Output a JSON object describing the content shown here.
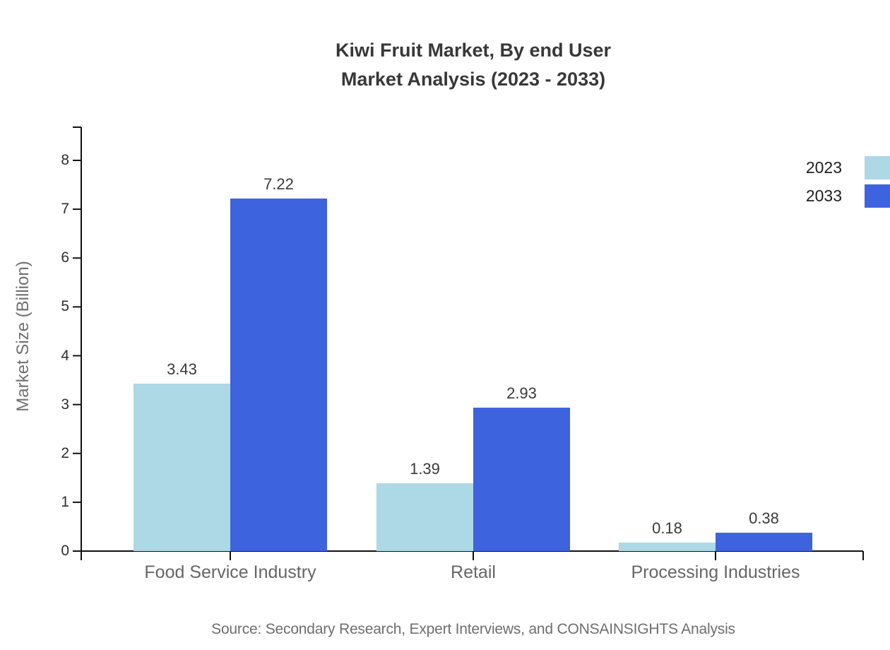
{
  "title": {
    "line1": "Kiwi Fruit Market, By end User",
    "line2": "Market Analysis (2023 - 2033)"
  },
  "y_axis_title": "Market Size (Billion)",
  "source_note": "Source: Secondary Research, Expert Interviews, and CONSAINSIGHTS Analysis",
  "colors": {
    "series_2023": "#ADD8E6",
    "series_2033": "#3D63DE",
    "axis": "#111111",
    "title_text": "#383838",
    "muted_text": "#666666"
  },
  "chart_data": {
    "type": "bar",
    "title": "Kiwi Fruit Market, By end User Market Analysis (2023 - 2033)",
    "categories": [
      "Food Service Industry",
      "Retail",
      "Processing Industries"
    ],
    "series": [
      {
        "name": "2023",
        "color": "#ADD8E6",
        "values": [
          3.43,
          1.39,
          0.18
        ]
      },
      {
        "name": "2033",
        "color": "#3D63DE",
        "values": [
          7.22,
          2.93,
          0.38
        ]
      }
    ],
    "xlabel": "",
    "ylabel": "Market Size (Billion)",
    "ylim": [
      0,
      8
    ],
    "yticks": [
      0,
      1,
      2,
      3,
      4,
      5,
      6,
      7,
      8
    ],
    "grid": false,
    "legend_position": "top-right",
    "value_labels": true,
    "value_label_format": "2dp"
  }
}
